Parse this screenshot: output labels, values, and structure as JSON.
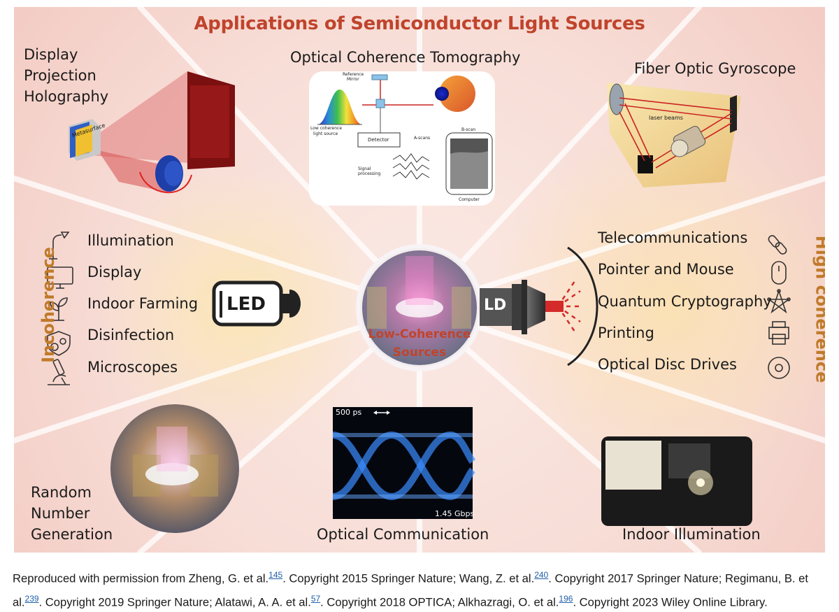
{
  "figure": {
    "title": "Applications of Semiconductor Light Sources",
    "center": {
      "line1": "Low-Coherence",
      "line2": "Sources"
    },
    "top_left": {
      "line1": "Display",
      "line2": "Projection",
      "line3": "Holography",
      "tag": "Metasurface"
    },
    "top_center": {
      "title": "Optical Coherence Tomography",
      "labels": {
        "mirror1": "Reference",
        "mirror2": "Mirror",
        "src1": "Low coherence",
        "src2": "light source",
        "detector": "Detector",
        "ascans": "A-scans",
        "bscan": "B-scan",
        "sig1": "Signal",
        "sig2": "processing",
        "computer": "Computer"
      }
    },
    "top_right": {
      "title": "Fiber Optic Gyroscope",
      "beams": "laser beams"
    },
    "left": {
      "side_label": "Incoherence",
      "items": [
        "Illumination",
        "Display",
        "Indoor Farming",
        "Disinfection",
        "Microscopes"
      ],
      "device": "LED",
      "icons": [
        "lamp-icon",
        "monitor-icon",
        "plant-icon",
        "shield-virus-icon",
        "microscope-icon"
      ]
    },
    "right": {
      "side_label": "High coherence",
      "items": [
        "Telecommunications",
        "Pointer and Mouse",
        "Quantum Cryptography",
        "Printing",
        "Optical Disc Drives"
      ],
      "device": "LD",
      "icons": [
        "chain-link-icon",
        "mouse-icon",
        "network-star-icon",
        "printer-icon",
        "disc-icon"
      ]
    },
    "bottom_left": {
      "line1": "Random",
      "line2": "Number",
      "line3": "Generation"
    },
    "bottom_center": {
      "title": "Optical Communication",
      "scale": "500 ps",
      "rate": "1.45 Gbps"
    },
    "bottom_right": {
      "title": "Indoor Illumination"
    },
    "colors": {
      "title": "#c0442c",
      "side_label": "#c07a2a",
      "background_glow": "#f6d8d2",
      "warm_glow": "#fbe3b8"
    }
  },
  "caption": {
    "p1": "Reproduced with permission from Zheng, G. et al.",
    "r1": "145",
    "p2": ". Copyright 2015 Springer Nature; Wang, Z. et al.",
    "r2": "240",
    "p3": ". Copyright 2017 Springer Nature; Regimanu, B. et al.",
    "r3": "239",
    "p4": ". Copyright 2019 Springer Nature; Alatawi, A. A. et al.",
    "r4": "57",
    "p5": ". Copyright 2018 OPTICA; Alkhazragi, O. et al.",
    "r5": "196",
    "p6": ". Copyright 2023 Wiley Online Library."
  }
}
